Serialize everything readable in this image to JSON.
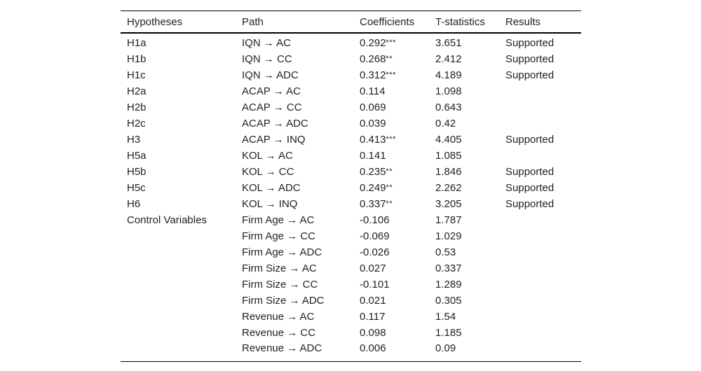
{
  "table": {
    "headers": [
      "Hypotheses",
      "Path",
      "Coefficients",
      "T-statistics",
      "Results"
    ],
    "rows": [
      {
        "hypothesis": "H1a",
        "path": "IQN → AC",
        "coefficient": "0.292",
        "sig": "***",
        "t": "3.651",
        "result": "Supported"
      },
      {
        "hypothesis": "H1b",
        "path": "IQN → CC",
        "coefficient": "0.268",
        "sig": "**",
        "t": "2.412",
        "result": "Supported"
      },
      {
        "hypothesis": "H1c",
        "path": "IQN → ADC",
        "coefficient": "0.312",
        "sig": "***",
        "t": "4.189",
        "result": "Supported"
      },
      {
        "hypothesis": "H2a",
        "path": "ACAP → AC",
        "coefficient": "0.114",
        "sig": "",
        "t": "1.098",
        "result": ""
      },
      {
        "hypothesis": "H2b",
        "path": "ACAP → CC",
        "coefficient": "0.069",
        "sig": "",
        "t": "0.643",
        "result": ""
      },
      {
        "hypothesis": "H2c",
        "path": "ACAP → ADC",
        "coefficient": "0.039",
        "sig": "",
        "t": "0.42",
        "result": ""
      },
      {
        "hypothesis": "H3",
        "path": "ACAP → INQ",
        "coefficient": "0.413",
        "sig": "***",
        "t": "4.405",
        "result": "Supported"
      },
      {
        "hypothesis": "H5a",
        "path": "KOL → AC",
        "coefficient": "0.141",
        "sig": "",
        "t": "1.085",
        "result": ""
      },
      {
        "hypothesis": "H5b",
        "path": "KOL → CC",
        "coefficient": "0.235",
        "sig": "**",
        "t": "1.846",
        "result": "Supported"
      },
      {
        "hypothesis": "H5c",
        "path": "KOL → ADC",
        "coefficient": "0.249",
        "sig": "**",
        "t": "2.262",
        "result": "Supported"
      },
      {
        "hypothesis": "H6",
        "path": "KOL → INQ",
        "coefficient": "0.337",
        "sig": "**",
        "t": "3.205",
        "result": "Supported"
      },
      {
        "hypothesis": "Control Variables",
        "path": "Firm Age → AC",
        "coefficient": "-0.106",
        "sig": "",
        "t": "1.787",
        "result": ""
      },
      {
        "hypothesis": "",
        "path": "Firm Age → CC",
        "coefficient": "-0.069",
        "sig": "",
        "t": "1.029",
        "result": ""
      },
      {
        "hypothesis": "",
        "path": "Firm Age → ADC",
        "coefficient": "-0.026",
        "sig": "",
        "t": "0.53",
        "result": ""
      },
      {
        "hypothesis": "",
        "path": "Firm Size → AC",
        "coefficient": "0.027",
        "sig": "",
        "t": "0.337",
        "result": ""
      },
      {
        "hypothesis": "",
        "path": "Firm Size → CC",
        "coefficient": "-0.101",
        "sig": "",
        "t": "1.289",
        "result": ""
      },
      {
        "hypothesis": "",
        "path": "Firm Size → ADC",
        "coefficient": "0.021",
        "sig": "",
        "t": "0.305",
        "result": ""
      },
      {
        "hypothesis": "",
        "path": "Revenue → AC",
        "coefficient": "0.117",
        "sig": "",
        "t": "1.54",
        "result": ""
      },
      {
        "hypothesis": "",
        "path": "Revenue → CC",
        "coefficient": "0.098",
        "sig": "",
        "t": "1.185",
        "result": ""
      },
      {
        "hypothesis": "",
        "path": "Revenue → ADC",
        "coefficient": "0.006",
        "sig": "",
        "t": "0.09",
        "result": ""
      }
    ]
  },
  "colors": {
    "text": "#222222",
    "rule": "#000000",
    "background": "#ffffff"
  }
}
